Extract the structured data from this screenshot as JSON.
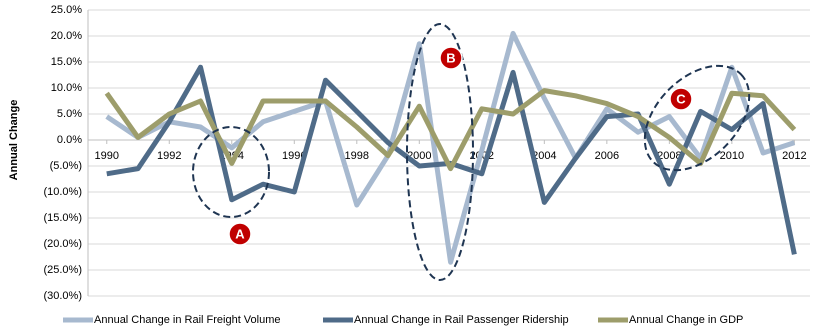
{
  "chart_data": {
    "type": "line",
    "y_label": "Annual Change",
    "x": [
      1990,
      1991,
      1992,
      1993,
      1994,
      1995,
      1996,
      1997,
      1998,
      1999,
      2000,
      2001,
      2002,
      2003,
      2004,
      2005,
      2006,
      2007,
      2008,
      2009,
      2010,
      2011,
      2012
    ],
    "xlim": [
      1989.4,
      2012.5
    ],
    "xticks": [
      1990,
      1992,
      1994,
      1996,
      1998,
      2000,
      2002,
      2004,
      2006,
      2008,
      2010,
      2012
    ],
    "ylim": [
      -30,
      25
    ],
    "yticks": [
      {
        "value": 25,
        "label": "25.0%"
      },
      {
        "value": 20,
        "label": "20.0%"
      },
      {
        "value": 15,
        "label": "15.0%"
      },
      {
        "value": 10,
        "label": "10.0%"
      },
      {
        "value": 5,
        "label": "5.0%"
      },
      {
        "value": 0,
        "label": "0.0%"
      },
      {
        "value": -5,
        "label": "(5.0%)"
      },
      {
        "value": -10,
        "label": "(10.0%)"
      },
      {
        "value": -15,
        "label": "(15.0%)"
      },
      {
        "value": -20,
        "label": "(20.0%)"
      },
      {
        "value": -25,
        "label": "(25.0%)"
      },
      {
        "value": -30,
        "label": "(30.0%)"
      }
    ],
    "grid": true,
    "legend": "bottom",
    "series": [
      {
        "name": "Annual Change in Rail Freight Volume",
        "color": "#a7b9cf",
        "values": [
          4.5,
          0.5,
          3.5,
          2.5,
          -1.5,
          3.5,
          5.5,
          7.5,
          -12.5,
          -3,
          18.5,
          -23.5,
          -2,
          20.5,
          8,
          -3.5,
          6,
          1.5,
          4.5,
          -3.5,
          14,
          -2.5,
          -0.5
        ]
      },
      {
        "name": "Annual Change in Rail Passenger Ridership",
        "color": "#4f6b88",
        "values": [
          -6.5,
          -5.5,
          3.5,
          14,
          -11.5,
          -8.5,
          -10,
          11.5,
          5.5,
          -0.5,
          -5,
          -4.5,
          -6.5,
          13,
          -12,
          -3.5,
          4.5,
          5,
          -8.5,
          5.5,
          2,
          7,
          -22
        ]
      },
      {
        "name": "Annual Change in GDP",
        "color": "#9d9d6b",
        "values": [
          9,
          0.5,
          5,
          7.5,
          -4.5,
          7.5,
          7.5,
          7.5,
          2.5,
          -3,
          6.5,
          -5.5,
          6,
          5,
          9.5,
          8.5,
          7,
          4.5,
          0.5,
          -4.5,
          9,
          8.5,
          2
        ]
      }
    ],
    "annotations": [
      "A",
      "B",
      "C"
    ]
  }
}
